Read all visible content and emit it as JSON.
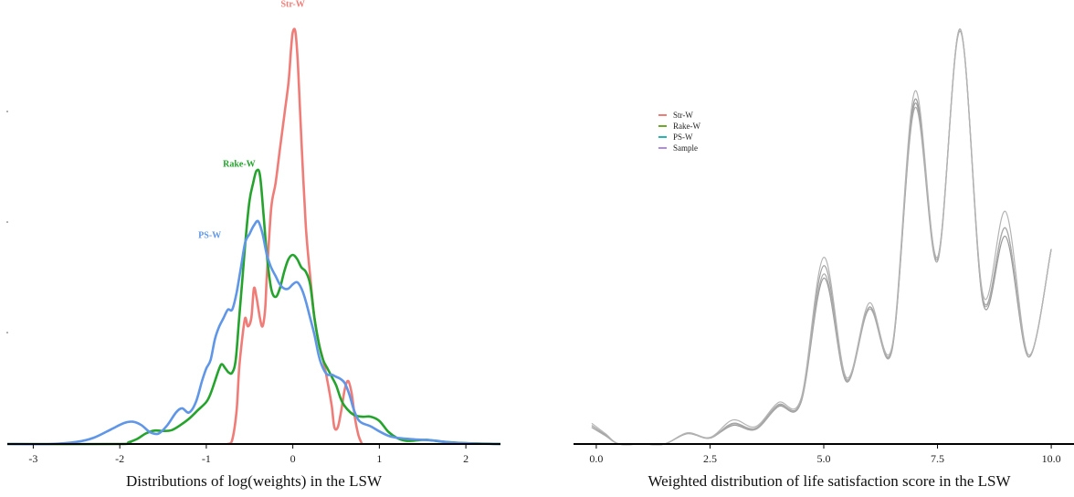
{
  "chart_data": [
    {
      "type": "line",
      "title": "Distributions of log(weights) in the LSW",
      "xlabel": "Distributions of log(weights) in the LSW",
      "ylabel": "",
      "xlim": [
        -3.3,
        2.4
      ],
      "ylim": [
        0,
        1.0
      ],
      "x_ticks": [
        -3,
        -2,
        -1,
        0,
        1,
        2
      ],
      "x_tick_labels": [
        "-3",
        "-2",
        "-1",
        "0",
        "1",
        "2"
      ],
      "grid": false,
      "legend": "none",
      "series": [
        {
          "name": "Str-W",
          "color": "#f07c78",
          "points": [
            [
              -0.75,
              0
            ],
            [
              -0.7,
              0.01
            ],
            [
              -0.65,
              0.08
            ],
            [
              -0.62,
              0.18
            ],
            [
              -0.58,
              0.26
            ],
            [
              -0.55,
              0.3
            ],
            [
              -0.52,
              0.28
            ],
            [
              -0.48,
              0.3
            ],
            [
              -0.45,
              0.37
            ],
            [
              -0.42,
              0.35
            ],
            [
              -0.38,
              0.3
            ],
            [
              -0.35,
              0.28
            ],
            [
              -0.32,
              0.32
            ],
            [
              -0.3,
              0.4
            ],
            [
              -0.25,
              0.56
            ],
            [
              -0.2,
              0.62
            ],
            [
              -0.15,
              0.7
            ],
            [
              -0.1,
              0.78
            ],
            [
              -0.05,
              0.86
            ],
            [
              -0.02,
              0.94
            ],
            [
              0.0,
              0.98
            ],
            [
              0.03,
              0.98
            ],
            [
              0.06,
              0.9
            ],
            [
              0.1,
              0.72
            ],
            [
              0.15,
              0.52
            ],
            [
              0.2,
              0.4
            ],
            [
              0.25,
              0.3
            ],
            [
              0.3,
              0.24
            ],
            [
              0.35,
              0.2
            ],
            [
              0.4,
              0.15
            ],
            [
              0.45,
              0.09
            ],
            [
              0.48,
              0.04
            ],
            [
              0.52,
              0.04
            ],
            [
              0.56,
              0.08
            ],
            [
              0.6,
              0.13
            ],
            [
              0.64,
              0.15
            ],
            [
              0.68,
              0.12
            ],
            [
              0.72,
              0.06
            ],
            [
              0.76,
              0.02
            ],
            [
              0.8,
              0.0
            ]
          ]
        },
        {
          "name": "Rake-W",
          "color": "#24a42c",
          "points": [
            [
              -3.3,
              0
            ],
            [
              -2.0,
              0
            ],
            [
              -1.9,
              0.004
            ],
            [
              -1.8,
              0.012
            ],
            [
              -1.7,
              0.025
            ],
            [
              -1.6,
              0.032
            ],
            [
              -1.5,
              0.031
            ],
            [
              -1.4,
              0.033
            ],
            [
              -1.3,
              0.045
            ],
            [
              -1.2,
              0.06
            ],
            [
              -1.1,
              0.08
            ],
            [
              -1.0,
              0.1
            ],
            [
              -0.95,
              0.12
            ],
            [
              -0.9,
              0.15
            ],
            [
              -0.85,
              0.18
            ],
            [
              -0.82,
              0.19
            ],
            [
              -0.78,
              0.18
            ],
            [
              -0.74,
              0.17
            ],
            [
              -0.7,
              0.17
            ],
            [
              -0.66,
              0.2
            ],
            [
              -0.62,
              0.3
            ],
            [
              -0.58,
              0.4
            ],
            [
              -0.54,
              0.5
            ],
            [
              -0.5,
              0.58
            ],
            [
              -0.46,
              0.62
            ],
            [
              -0.42,
              0.65
            ],
            [
              -0.38,
              0.64
            ],
            [
              -0.34,
              0.55
            ],
            [
              -0.3,
              0.45
            ],
            [
              -0.25,
              0.37
            ],
            [
              -0.2,
              0.35
            ],
            [
              -0.15,
              0.37
            ],
            [
              -0.1,
              0.41
            ],
            [
              -0.05,
              0.44
            ],
            [
              0.0,
              0.45
            ],
            [
              0.05,
              0.44
            ],
            [
              0.1,
              0.42
            ],
            [
              0.15,
              0.41
            ],
            [
              0.2,
              0.38
            ],
            [
              0.25,
              0.3
            ],
            [
              0.3,
              0.24
            ],
            [
              0.35,
              0.2
            ],
            [
              0.4,
              0.18
            ],
            [
              0.45,
              0.16
            ],
            [
              0.5,
              0.14
            ],
            [
              0.55,
              0.11
            ],
            [
              0.6,
              0.09
            ],
            [
              0.7,
              0.07
            ],
            [
              0.8,
              0.065
            ],
            [
              0.9,
              0.065
            ],
            [
              1.0,
              0.055
            ],
            [
              1.1,
              0.03
            ],
            [
              1.2,
              0.015
            ],
            [
              1.3,
              0.008
            ],
            [
              1.4,
              0.008
            ],
            [
              1.55,
              0.01
            ],
            [
              1.7,
              0.006
            ],
            [
              2.0,
              0.002
            ],
            [
              2.4,
              0
            ]
          ]
        },
        {
          "name": "PS-W",
          "color": "#5f96e8",
          "points": [
            [
              -3.3,
              0
            ],
            [
              -2.8,
              0
            ],
            [
              -2.5,
              0.005
            ],
            [
              -2.3,
              0.015
            ],
            [
              -2.1,
              0.035
            ],
            [
              -1.95,
              0.05
            ],
            [
              -1.85,
              0.053
            ],
            [
              -1.75,
              0.045
            ],
            [
              -1.65,
              0.028
            ],
            [
              -1.55,
              0.025
            ],
            [
              -1.45,
              0.045
            ],
            [
              -1.35,
              0.075
            ],
            [
              -1.28,
              0.085
            ],
            [
              -1.2,
              0.075
            ],
            [
              -1.12,
              0.1
            ],
            [
              -1.05,
              0.15
            ],
            [
              -1.0,
              0.18
            ],
            [
              -0.95,
              0.2
            ],
            [
              -0.9,
              0.25
            ],
            [
              -0.85,
              0.28
            ],
            [
              -0.8,
              0.3
            ],
            [
              -0.75,
              0.32
            ],
            [
              -0.7,
              0.32
            ],
            [
              -0.65,
              0.36
            ],
            [
              -0.6,
              0.42
            ],
            [
              -0.55,
              0.48
            ],
            [
              -0.5,
              0.5
            ],
            [
              -0.45,
              0.52
            ],
            [
              -0.4,
              0.53
            ],
            [
              -0.35,
              0.5
            ],
            [
              -0.3,
              0.45
            ],
            [
              -0.25,
              0.42
            ],
            [
              -0.2,
              0.4
            ],
            [
              -0.15,
              0.38
            ],
            [
              -0.1,
              0.37
            ],
            [
              -0.05,
              0.37
            ],
            [
              0.0,
              0.38
            ],
            [
              0.05,
              0.385
            ],
            [
              0.1,
              0.37
            ],
            [
              0.15,
              0.34
            ],
            [
              0.2,
              0.3
            ],
            [
              0.25,
              0.26
            ],
            [
              0.3,
              0.21
            ],
            [
              0.35,
              0.18
            ],
            [
              0.4,
              0.165
            ],
            [
              0.45,
              0.165
            ],
            [
              0.5,
              0.16
            ],
            [
              0.55,
              0.155
            ],
            [
              0.6,
              0.145
            ],
            [
              0.65,
              0.12
            ],
            [
              0.7,
              0.085
            ],
            [
              0.75,
              0.06
            ],
            [
              0.8,
              0.05
            ],
            [
              0.9,
              0.042
            ],
            [
              1.0,
              0.03
            ],
            [
              1.1,
              0.02
            ],
            [
              1.2,
              0.015
            ],
            [
              1.35,
              0.012
            ],
            [
              1.5,
              0.01
            ],
            [
              1.65,
              0.008
            ],
            [
              1.8,
              0.004
            ],
            [
              2.1,
              0.001
            ],
            [
              2.4,
              0
            ]
          ]
        }
      ],
      "annotations": [
        {
          "text": "Str-W",
          "x": 0.0,
          "y": 1.04,
          "color": "#f07c78"
        },
        {
          "text": "Rake-W",
          "x": -0.62,
          "y": 0.66,
          "color": "#24a42c"
        },
        {
          "text": "PS-W",
          "x": -0.96,
          "y": 0.49,
          "color": "#5f96e8"
        }
      ]
    },
    {
      "type": "line",
      "title": "Weighted distribution of life satisfaction score in the LSW",
      "xlabel": "Weighted distribution of life satisfaction score in the LSW",
      "ylabel": "",
      "xlim": [
        -0.5,
        10.5
      ],
      "ylim": [
        0,
        1.0
      ],
      "x_ticks": [
        0,
        2.5,
        5,
        7.5,
        10
      ],
      "x_tick_labels": [
        "0.0",
        "2.5",
        "5.0",
        "7.5",
        "10.0"
      ],
      "grid": false,
      "legend": "top-left",
      "legend_entries": [
        {
          "name": "Str-W",
          "color": "#f07c78"
        },
        {
          "name": "Rake-W",
          "color": "#6ea82a"
        },
        {
          "name": "PS-W",
          "color": "#26b5b0"
        },
        {
          "name": "Sample",
          "color": "#b08ce0"
        }
      ],
      "series": [
        {
          "name": "Str-W",
          "color": "#9a9a9a",
          "x": [
            -0.1,
            0.2,
            0.5,
            1.0,
            1.5,
            2.0,
            2.5,
            3.0,
            3.5,
            4.0,
            4.5,
            5.0,
            5.5,
            6.0,
            6.5,
            7.0,
            7.5,
            8.0,
            8.5,
            9.0,
            9.5,
            10.0
          ],
          "y": [
            0.04,
            0.02,
            0.0,
            0.0,
            0.0,
            0.025,
            0.015,
            0.045,
            0.035,
            0.09,
            0.1,
            0.4,
            0.15,
            0.33,
            0.23,
            0.83,
            0.45,
            1.0,
            0.34,
            0.5,
            0.21,
            0.47
          ]
        },
        {
          "name": "Rake-W",
          "color": "#a2a2a2",
          "x": [
            -0.1,
            0.2,
            0.5,
            1.0,
            1.5,
            2.0,
            2.5,
            3.0,
            3.5,
            4.0,
            4.5,
            5.0,
            5.5,
            6.0,
            6.5,
            7.0,
            7.5,
            8.0,
            8.5,
            9.0,
            9.5,
            10.0
          ],
          "y": [
            0.045,
            0.022,
            0.0,
            0.0,
            0.0,
            0.026,
            0.015,
            0.05,
            0.038,
            0.095,
            0.105,
            0.43,
            0.155,
            0.33,
            0.225,
            0.82,
            0.445,
            1.0,
            0.35,
            0.52,
            0.21,
            0.47
          ]
        },
        {
          "name": "PS-W",
          "color": "#aaaaaa",
          "x": [
            -0.1,
            0.2,
            0.5,
            1.0,
            1.5,
            2.0,
            2.5,
            3.0,
            3.5,
            4.0,
            4.5,
            5.0,
            5.5,
            6.0,
            6.5,
            7.0,
            7.5,
            8.0,
            8.5,
            9.0,
            9.5,
            10.0
          ],
          "y": [
            0.04,
            0.02,
            0.0,
            0.0,
            0.0,
            0.025,
            0.014,
            0.048,
            0.036,
            0.092,
            0.102,
            0.41,
            0.152,
            0.325,
            0.228,
            0.81,
            0.44,
            0.995,
            0.345,
            0.52,
            0.21,
            0.47
          ]
        },
        {
          "name": "Sample",
          "color": "#b4b4b4",
          "x": [
            -0.1,
            0.2,
            0.5,
            1.0,
            1.5,
            2.0,
            2.5,
            3.0,
            3.5,
            4.0,
            4.5,
            5.0,
            5.5,
            6.0,
            6.5,
            7.0,
            7.5,
            8.0,
            8.5,
            9.0,
            9.5,
            10.0
          ],
          "y": [
            0.05,
            0.025,
            0.0,
            0.0,
            0.0,
            0.027,
            0.016,
            0.058,
            0.042,
            0.1,
            0.11,
            0.45,
            0.16,
            0.34,
            0.235,
            0.85,
            0.45,
            1.0,
            0.36,
            0.56,
            0.215,
            0.47
          ]
        }
      ]
    }
  ]
}
